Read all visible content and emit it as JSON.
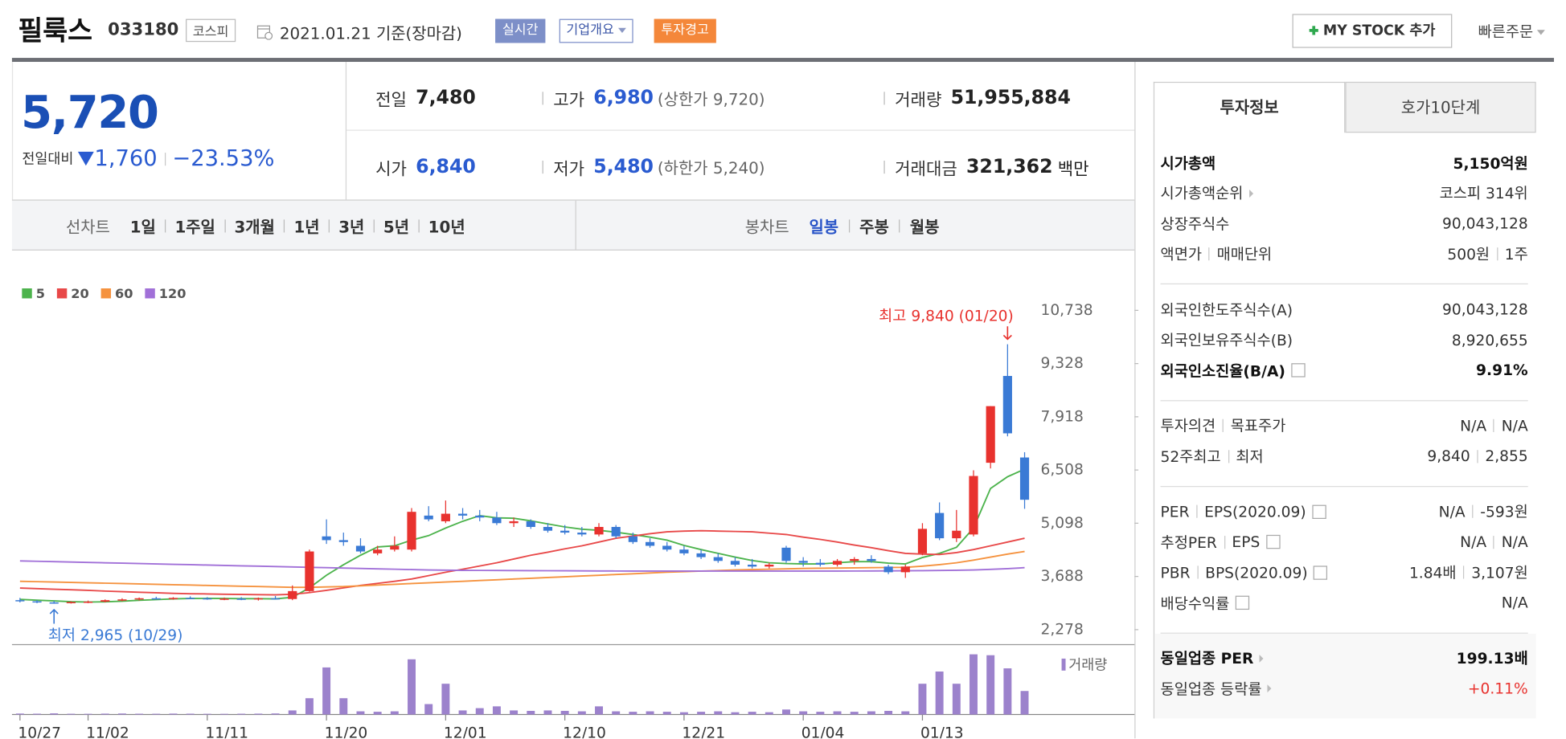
{
  "header": {
    "name": "필룩스",
    "code": "033180",
    "market": "코스피",
    "date": "2021.01.21 기준(장마감)",
    "buttons": [
      "실시간",
      "기업개요",
      "투자경고"
    ],
    "my_stock": "MY STOCK 추가",
    "quick_order": "빠른주문"
  },
  "quote": {
    "price": "5,720",
    "change_label": "전일대비",
    "change": "1,760",
    "change_rate": "−23.53%",
    "items": [
      {
        "label": "전일",
        "value": "7,480"
      },
      {
        "label": "고가",
        "value": "6,980",
        "note": "(상한가 9,720)",
        "color": "#2a5bd0"
      },
      {
        "label": "거래량",
        "value": "51,955,884"
      },
      {
        "label": "시가",
        "value": "6,840",
        "color": "#2a5bd0"
      },
      {
        "label": "저가",
        "value": "5,480",
        "note": "(하한가 5,240)",
        "color": "#2a5bd0"
      },
      {
        "label": "거래대금",
        "value": "321,362",
        "unit": "백만"
      }
    ]
  },
  "period_bar": {
    "line_label": "선차트",
    "line_periods": [
      "1일",
      "1주일",
      "3개월",
      "1년",
      "3년",
      "5년",
      "10년"
    ],
    "candle_label": "봉차트",
    "candle_periods": [
      "일봉",
      "주봉",
      "월봉"
    ],
    "active": "일봉"
  },
  "side_panel": {
    "tabs": [
      "투자정보",
      "호가10단계"
    ],
    "groups": [
      {
        "rows": [
          {
            "labels": [
              "시가총액"
            ],
            "values": [
              "5,150억원"
            ],
            "bold": true
          },
          {
            "labels": [
              "시가총액순위"
            ],
            "values": [
              "코스피 314위"
            ],
            "link": true
          },
          {
            "labels": [
              "상장주식수"
            ],
            "values": [
              "90,043,128"
            ]
          },
          {
            "labels": [
              "액면가",
              "매매단위"
            ],
            "values": [
              "500원",
              "1주"
            ]
          }
        ]
      },
      {
        "rows": [
          {
            "labels": [
              "외국인한도주식수(A)"
            ],
            "values": [
              "90,043,128"
            ]
          },
          {
            "labels": [
              "외국인보유주식수(B)"
            ],
            "values": [
              "8,920,655"
            ]
          },
          {
            "labels": [
              "외국인소진율(B/A)"
            ],
            "values": [
              "9.91%"
            ],
            "bold": true,
            "help": true
          }
        ]
      },
      {
        "rows": [
          {
            "labels": [
              "투자의견",
              "목표주가"
            ],
            "values": [
              "N/A",
              "N/A"
            ]
          },
          {
            "labels": [
              "52주최고",
              "최저"
            ],
            "values": [
              "9,840",
              "2,855"
            ]
          }
        ]
      },
      {
        "rows": [
          {
            "labels": [
              "PER",
              "EPS(2020.09)"
            ],
            "values": [
              "N/A",
              "-593원"
            ],
            "help": true
          },
          {
            "labels": [
              "추정PER",
              "EPS"
            ],
            "values": [
              "N/A",
              "N/A"
            ],
            "help": true
          },
          {
            "labels": [
              "PBR",
              "BPS(2020.09)"
            ],
            "values": [
              "1.84배",
              "3,107원"
            ],
            "help": true
          },
          {
            "labels": [
              "배당수익률"
            ],
            "values": [
              "N/A"
            ],
            "help": true
          }
        ]
      },
      {
        "shaded": true,
        "rows": [
          {
            "labels": [
              "동일업종 PER"
            ],
            "values": [
              "199.13배"
            ],
            "bold": true,
            "link": true
          },
          {
            "labels": [
              "동일업종 등락률"
            ],
            "values": [
              "+0.11%"
            ],
            "link": true,
            "color": "#e8322e"
          }
        ]
      }
    ]
  },
  "chart_data": {
    "type": "candlestick",
    "categories": [
      "10/27",
      null,
      null,
      null,
      "11/02",
      null,
      null,
      null,
      null,
      null,
      null,
      "11/11",
      null,
      null,
      null,
      null,
      null,
      null,
      "11/20",
      null,
      null,
      null,
      null,
      null,
      null,
      "12/01",
      null,
      null,
      null,
      null,
      null,
      null,
      "12/10",
      null,
      null,
      null,
      null,
      null,
      null,
      "12/21",
      null,
      null,
      null,
      null,
      null,
      null,
      "01/04",
      null,
      null,
      null,
      null,
      null,
      null,
      "01/13",
      null,
      null,
      null,
      null,
      null,
      null
    ],
    "open": [
      3060,
      3030,
      3000,
      2990,
      3010,
      3020,
      3060,
      3080,
      3110,
      3100,
      3120,
      3110,
      3090,
      3100,
      3080,
      3110,
      3090,
      3300,
      4750,
      4650,
      4500,
      4300,
      4400,
      4400,
      5300,
      5150,
      5350,
      5300,
      5250,
      5100,
      5150,
      5000,
      4900,
      4850,
      4800,
      5000,
      4750,
      4600,
      4500,
      4400,
      4300,
      4200,
      4100,
      4000,
      3950,
      4450,
      4100,
      4050,
      4000,
      4100,
      4150,
      3950,
      3800,
      4300,
      5370,
      4700,
      4800,
      6700,
      9000,
      6840
    ],
    "high": [
      3120,
      3060,
      3040,
      3030,
      3050,
      3080,
      3110,
      3130,
      3150,
      3140,
      3160,
      3140,
      3130,
      3140,
      3130,
      3170,
      3450,
      4400,
      5200,
      4850,
      4700,
      4500,
      4750,
      5500,
      5550,
      5700,
      5500,
      5450,
      5400,
      5250,
      5200,
      5100,
      5050,
      5000,
      5100,
      5050,
      4850,
      4700,
      4600,
      4500,
      4400,
      4300,
      4200,
      4150,
      4050,
      4500,
      4200,
      4150,
      4150,
      4200,
      4250,
      4000,
      4000,
      5100,
      5650,
      5450,
      6500,
      8200,
      9840,
      6980
    ],
    "low": [
      3000,
      2980,
      2965,
      2970,
      2980,
      3000,
      3030,
      3050,
      3080,
      3070,
      3090,
      3070,
      3060,
      3060,
      3050,
      3080,
      3060,
      3280,
      4550,
      4500,
      4300,
      4250,
      4350,
      4350,
      5150,
      5100,
      5200,
      5150,
      5050,
      5000,
      4950,
      4850,
      4800,
      4750,
      4750,
      4700,
      4550,
      4450,
      4350,
      4250,
      4150,
      4050,
      3950,
      3900,
      3900,
      4050,
      3950,
      3950,
      3950,
      4000,
      4050,
      3750,
      3650,
      4250,
      4650,
      4600,
      4750,
      6550,
      7400,
      5480
    ],
    "close": [
      3030,
      3000,
      2990,
      3010,
      3020,
      3060,
      3080,
      3110,
      3100,
      3120,
      3110,
      3090,
      3100,
      3080,
      3110,
      3090,
      3300,
      4350,
      4650,
      4600,
      4350,
      4400,
      4500,
      5400,
      5200,
      5350,
      5300,
      5250,
      5100,
      5150,
      5000,
      4900,
      4850,
      4800,
      5000,
      4750,
      4600,
      4500,
      4400,
      4300,
      4200,
      4100,
      4000,
      3950,
      4000,
      4100,
      4050,
      4000,
      4100,
      4150,
      4100,
      3800,
      3950,
      4950,
      4700,
      4900,
      6350,
      8200,
      7480,
      5720
    ],
    "volume": [
      2100000,
      1800000,
      2500000,
      1600000,
      1500000,
      1900000,
      2200000,
      1700000,
      1600000,
      2000000,
      1800000,
      1500000,
      1400000,
      1700000,
      1900000,
      2300000,
      9000000,
      36000000,
      104000000,
      36000000,
      7000000,
      6000000,
      7000000,
      122000000,
      23000000,
      68000000,
      9000000,
      14000000,
      18000000,
      9000000,
      8000000,
      9000000,
      8000000,
      7000000,
      18000000,
      7000000,
      6000000,
      7000000,
      6000000,
      5000000,
      6000000,
      7000000,
      5000000,
      6000000,
      5000000,
      11000000,
      7000000,
      6000000,
      7000000,
      6000000,
      7000000,
      8000000,
      7000000,
      68000000,
      95000000,
      68000000,
      133000000,
      131000000,
      102000000,
      51955884
    ],
    "volume_lim": [
      0,
      150000000
    ],
    "volume_label": "거래량",
    "volume_color": "#9c82cc",
    "up_color": "#e8322e",
    "down_color": "#3a7ad5",
    "series": [
      {
        "name": "5",
        "color": "#4cb34c",
        "values": [
          3080,
          3060,
          3040,
          3020,
          3010,
          3016,
          3032,
          3056,
          3074,
          3094,
          3104,
          3106,
          3104,
          3100,
          3098,
          3094,
          3136,
          3386,
          3720,
          3998,
          4250,
          4470,
          4500,
          4650,
          4770,
          4970,
          5150,
          5300,
          5240,
          5230,
          5160,
          5080,
          5000,
          4940,
          4910,
          4860,
          4800,
          4730,
          4650,
          4510,
          4400,
          4300,
          4200,
          4110,
          4050,
          4030,
          4020,
          4020,
          4050,
          4080,
          4080,
          4040,
          4020,
          4190,
          4300,
          4460,
          4970,
          6020,
          6330,
          6530
        ]
      },
      {
        "name": "20",
        "color": "#e84848",
        "values": [
          3380,
          3365,
          3350,
          3335,
          3320,
          3300,
          3285,
          3270,
          3255,
          3240,
          3230,
          3225,
          3215,
          3210,
          3205,
          3200,
          3215,
          3260,
          3320,
          3385,
          3450,
          3505,
          3560,
          3620,
          3710,
          3800,
          3880,
          3965,
          4050,
          4150,
          4250,
          4330,
          4420,
          4500,
          4600,
          4700,
          4760,
          4820,
          4870,
          4890,
          4900,
          4890,
          4880,
          4870,
          4835,
          4800,
          4730,
          4670,
          4600,
          4520,
          4450,
          4370,
          4300,
          4280,
          4270,
          4320,
          4400,
          4500,
          4600,
          4700
        ]
      },
      {
        "name": "60",
        "color": "#f5923e",
        "values": [
          3560,
          3550,
          3540,
          3530,
          3520,
          3510,
          3500,
          3490,
          3480,
          3470,
          3460,
          3450,
          3440,
          3430,
          3420,
          3410,
          3400,
          3400,
          3410,
          3420,
          3440,
          3460,
          3480,
          3500,
          3520,
          3540,
          3560,
          3580,
          3600,
          3620,
          3640,
          3660,
          3680,
          3700,
          3720,
          3740,
          3760,
          3780,
          3800,
          3815,
          3830,
          3845,
          3860,
          3870,
          3880,
          3890,
          3900,
          3905,
          3910,
          3915,
          3920,
          3925,
          3930,
          3960,
          4000,
          4050,
          4120,
          4200,
          4280,
          4350
        ]
      },
      {
        "name": "120",
        "color": "#a170d8",
        "values": [
          4100,
          4090,
          4080,
          4070,
          4060,
          4050,
          4040,
          4030,
          4020,
          4010,
          4000,
          3990,
          3980,
          3970,
          3960,
          3950,
          3940,
          3930,
          3920,
          3910,
          3900,
          3890,
          3880,
          3870,
          3860,
          3855,
          3850,
          3848,
          3846,
          3844,
          3842,
          3840,
          3838,
          3836,
          3834,
          3832,
          3830,
          3830,
          3830,
          3830,
          3830,
          3830,
          3830,
          3830,
          3830,
          3830,
          3830,
          3830,
          3830,
          3832,
          3834,
          3836,
          3838,
          3842,
          3846,
          3852,
          3860,
          3875,
          3895,
          3920
        ]
      }
    ],
    "ylim": [
      1908,
      11029
    ],
    "yticks": [
      {
        "value": 2278,
        "label": "2,278"
      },
      {
        "value": 3688,
        "label": "3,688"
      },
      {
        "value": 5098,
        "label": "5,098"
      },
      {
        "value": 6508,
        "label": "6,508"
      },
      {
        "value": 7918,
        "label": "7,918"
      },
      {
        "value": 9328,
        "label": "9,328"
      },
      {
        "value": 10738,
        "label": "10,738"
      }
    ],
    "grid": false,
    "high_label": "최고 9,840 (01/20)",
    "low_label": "최저 2,965 (10/29)"
  }
}
